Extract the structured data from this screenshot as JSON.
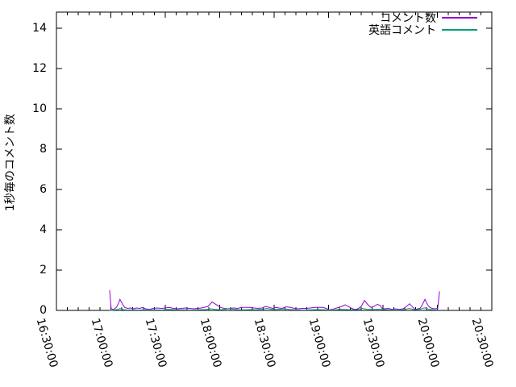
{
  "chart_data": {
    "type": "line",
    "title": "",
    "xlabel": "",
    "ylabel": "1秒毎のコメント数",
    "x_range": [
      "16:30:00",
      "20:30:00"
    ],
    "ylim": [
      0,
      14.8
    ],
    "y_ticks": [
      0,
      2,
      4,
      6,
      8,
      10,
      12,
      14
    ],
    "x_tick_labels": [
      "16:30:00",
      "17:00:00",
      "17:30:00",
      "18:00:00",
      "18:30:00",
      "19:00:00",
      "19:30:00",
      "20:00:00",
      "20:30:00"
    ],
    "x_minor_divisions": 5,
    "grid": false,
    "legend_position": "top-right-inside",
    "axis_color": "#000000",
    "text_color": "#000000",
    "background_color": "#ffffff",
    "series": [
      {
        "name": "コメント数",
        "color": "#9400d3",
        "points": [
          [
            "16:59:20",
            1.0
          ],
          [
            "17:00:10",
            0.08
          ],
          [
            "17:01:30",
            0.05
          ],
          [
            "17:03:00",
            0.15
          ],
          [
            "17:04:10",
            0.35
          ],
          [
            "17:05:00",
            0.55
          ],
          [
            "17:06:30",
            0.3
          ],
          [
            "17:07:40",
            0.15
          ],
          [
            "17:09:10",
            0.1
          ],
          [
            "17:11:00",
            0.12
          ],
          [
            "17:12:30",
            0.08
          ],
          [
            "17:14:00",
            0.12
          ],
          [
            "17:16:00",
            0.1
          ],
          [
            "17:17:30",
            0.15
          ],
          [
            "17:19:00",
            0.08
          ],
          [
            "17:21:00",
            0.05
          ],
          [
            "17:23:20",
            0.1
          ],
          [
            "17:25:30",
            0.12
          ],
          [
            "17:27:50",
            0.1
          ],
          [
            "17:30:00",
            0.12
          ],
          [
            "17:32:10",
            0.15
          ],
          [
            "17:34:30",
            0.1
          ],
          [
            "17:36:40",
            0.08
          ],
          [
            "17:38:50",
            0.1
          ],
          [
            "17:41:10",
            0.12
          ],
          [
            "17:43:20",
            0.1
          ],
          [
            "17:45:30",
            0.08
          ],
          [
            "17:47:50",
            0.1
          ],
          [
            "17:50:00",
            0.12
          ],
          [
            "17:53:30",
            0.2
          ],
          [
            "17:55:50",
            0.42
          ],
          [
            "17:57:00",
            0.35
          ],
          [
            "17:58:50",
            0.25
          ],
          [
            "18:00:30",
            0.15
          ],
          [
            "18:02:30",
            0.1
          ],
          [
            "18:04:30",
            0.08
          ],
          [
            "18:06:00",
            0.1
          ],
          [
            "18:07:50",
            0.12
          ],
          [
            "18:10:00",
            0.1
          ],
          [
            "18:12:00",
            0.15
          ],
          [
            "18:14:30",
            0.15
          ],
          [
            "18:16:40",
            0.15
          ],
          [
            "18:18:50",
            0.12
          ],
          [
            "18:21:00",
            0.1
          ],
          [
            "18:23:20",
            0.12
          ],
          [
            "18:25:30",
            0.2
          ],
          [
            "18:27:20",
            0.15
          ],
          [
            "18:29:10",
            0.1
          ],
          [
            "18:31:00",
            0.15
          ],
          [
            "18:32:40",
            0.12
          ],
          [
            "18:34:30",
            0.1
          ],
          [
            "18:36:40",
            0.18
          ],
          [
            "18:38:50",
            0.15
          ],
          [
            "18:41:10",
            0.1
          ],
          [
            "18:43:20",
            0.08
          ],
          [
            "18:45:30",
            0.1
          ],
          [
            "18:47:50",
            0.1
          ],
          [
            "18:50:00",
            0.12
          ],
          [
            "18:52:20",
            0.15
          ],
          [
            "18:54:30",
            0.15
          ],
          [
            "18:56:40",
            0.15
          ],
          [
            "18:58:50",
            0.1
          ],
          [
            "19:00:10",
            0.03
          ],
          [
            "19:02:00",
            0.05
          ],
          [
            "19:03:50",
            0.1
          ],
          [
            "19:05:30",
            0.15
          ],
          [
            "19:07:20",
            0.2
          ],
          [
            "19:09:10",
            0.28
          ],
          [
            "19:10:50",
            0.2
          ],
          [
            "19:12:40",
            0.1
          ],
          [
            "19:14:30",
            0.05
          ],
          [
            "19:16:10",
            0.08
          ],
          [
            "19:18:00",
            0.2
          ],
          [
            "19:19:50",
            0.5
          ],
          [
            "19:21:30",
            0.3
          ],
          [
            "19:23:20",
            0.15
          ],
          [
            "19:25:00",
            0.2
          ],
          [
            "19:26:50",
            0.3
          ],
          [
            "19:28:30",
            0.25
          ],
          [
            "19:29:30",
            0.1
          ],
          [
            "19:31:00",
            0.08
          ],
          [
            "19:33:10",
            0.1
          ],
          [
            "19:35:00",
            0.05
          ],
          [
            "19:36:40",
            0.08
          ],
          [
            "19:38:50",
            0.05
          ],
          [
            "19:41:10",
            0.08
          ],
          [
            "19:43:00",
            0.2
          ],
          [
            "19:44:40",
            0.33
          ],
          [
            "19:46:30",
            0.15
          ],
          [
            "19:47:50",
            0.05
          ],
          [
            "19:49:10",
            0.08
          ],
          [
            "19:50:30",
            0.1
          ],
          [
            "19:51:50",
            0.3
          ],
          [
            "19:53:10",
            0.55
          ],
          [
            "19:54:30",
            0.3
          ],
          [
            "19:55:50",
            0.15
          ],
          [
            "19:57:10",
            0.1
          ],
          [
            "19:58:50",
            0.08
          ],
          [
            "20:00:10",
            0.1
          ],
          [
            "20:01:10",
            0.95
          ]
        ]
      },
      {
        "name": "英語コメント",
        "color": "#009e73",
        "points": [
          [
            "16:59:20",
            0.0
          ],
          [
            "17:02:00",
            0.02
          ],
          [
            "17:04:00",
            0.05
          ],
          [
            "17:05:00",
            0.1
          ],
          [
            "17:06:30",
            0.04
          ],
          [
            "17:09:00",
            0.02
          ],
          [
            "17:12:00",
            0.03
          ],
          [
            "17:15:00",
            0.02
          ],
          [
            "17:18:00",
            0.03
          ],
          [
            "17:21:00",
            0.02
          ],
          [
            "17:24:00",
            0.03
          ],
          [
            "17:28:00",
            0.02
          ],
          [
            "17:32:00",
            0.05
          ],
          [
            "17:36:00",
            0.03
          ],
          [
            "17:40:00",
            0.03
          ],
          [
            "17:44:00",
            0.02
          ],
          [
            "17:48:00",
            0.03
          ],
          [
            "17:52:00",
            0.04
          ],
          [
            "17:55:00",
            0.08
          ],
          [
            "17:57:30",
            0.05
          ],
          [
            "18:00:00",
            0.03
          ],
          [
            "18:03:00",
            0.05
          ],
          [
            "18:05:30",
            0.1
          ],
          [
            "18:08:00",
            0.05
          ],
          [
            "18:11:00",
            0.03
          ],
          [
            "18:14:00",
            0.03
          ],
          [
            "18:17:00",
            0.04
          ],
          [
            "18:20:00",
            0.03
          ],
          [
            "18:23:00",
            0.05
          ],
          [
            "18:26:00",
            0.1
          ],
          [
            "18:29:00",
            0.05
          ],
          [
            "18:32:00",
            0.05
          ],
          [
            "18:36:00",
            0.08
          ],
          [
            "18:39:00",
            0.04
          ],
          [
            "18:42:00",
            0.03
          ],
          [
            "18:46:00",
            0.02
          ],
          [
            "18:50:00",
            0.03
          ],
          [
            "18:54:00",
            0.04
          ],
          [
            "18:58:00",
            0.03
          ],
          [
            "19:01:00",
            0.02
          ],
          [
            "19:04:00",
            0.03
          ],
          [
            "19:07:00",
            0.05
          ],
          [
            "19:10:00",
            0.04
          ],
          [
            "19:13:00",
            0.03
          ],
          [
            "19:16:00",
            0.04
          ],
          [
            "19:18:30",
            0.1
          ],
          [
            "19:21:00",
            0.06
          ],
          [
            "19:24:00",
            0.04
          ],
          [
            "19:27:00",
            0.06
          ],
          [
            "19:30:00",
            0.04
          ],
          [
            "19:33:00",
            0.03
          ],
          [
            "19:37:00",
            0.02
          ],
          [
            "19:41:00",
            0.03
          ],
          [
            "19:44:30",
            0.1
          ],
          [
            "19:47:00",
            0.04
          ],
          [
            "19:50:00",
            0.05
          ],
          [
            "19:53:00",
            0.13
          ],
          [
            "19:55:30",
            0.05
          ],
          [
            "19:58:00",
            0.03
          ],
          [
            "20:00:30",
            0.02
          ]
        ]
      }
    ]
  }
}
